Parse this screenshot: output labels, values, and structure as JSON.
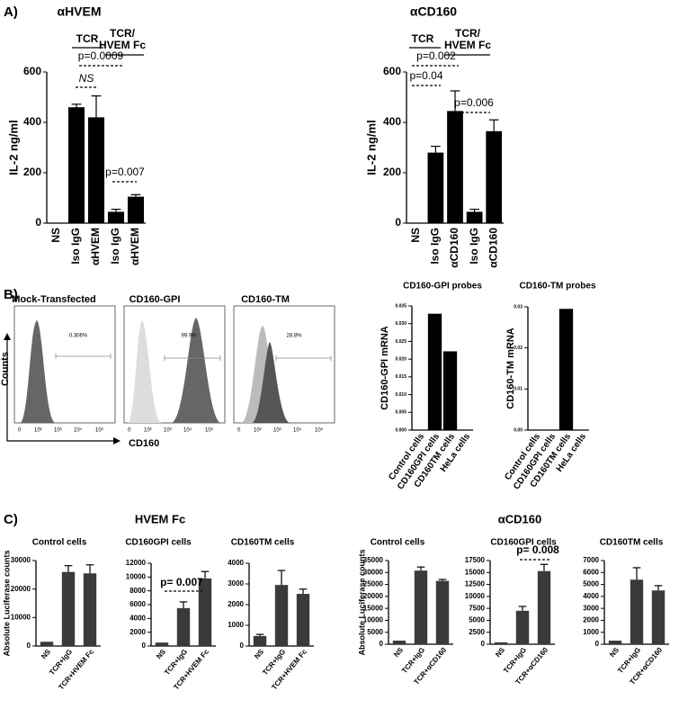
{
  "panel_labels": [
    "A)",
    "B)",
    "C)"
  ],
  "group_titles": [
    "HVEM Fc",
    "αCD160"
  ],
  "flow": {
    "ylabel": "Counts",
    "xlabel": "CD160",
    "xtick_labels": [
      "0",
      "10²",
      "10³",
      "10⁴",
      "10⁵"
    ],
    "panels": [
      {
        "title": "Mock-Transfected",
        "gate": "0.306%"
      },
      {
        "title": "CD160-GPI",
        "gate": "99.9%"
      },
      {
        "title": "CD160-TM",
        "gate": "28.8%"
      }
    ]
  },
  "chart_data": [
    {
      "type": "bar",
      "title": "αHVEM",
      "ylabel": "IL-2 ng/ml",
      "categories": [
        "NS",
        "Iso IgG",
        "αHVEM",
        "Iso IgG",
        "αHVEM"
      ],
      "values": [
        0,
        460,
        420,
        45,
        105
      ],
      "errors": [
        0,
        12,
        85,
        10,
        8
      ],
      "ylim": [
        0,
        600
      ],
      "yticks": [
        0,
        200,
        400,
        600
      ],
      "color": "#000000",
      "annotations": [
        "TCR",
        "TCR/",
        "HVEM Fc",
        "p=0.0009",
        "NS",
        "p=0.007"
      ]
    },
    {
      "type": "bar",
      "title": "αCD160",
      "ylabel": "IL-2 ng/ml",
      "categories": [
        "NS",
        "Iso IgG",
        "αCD160",
        "Iso IgG",
        "αCD160"
      ],
      "values": [
        0,
        280,
        445,
        45,
        365
      ],
      "errors": [
        0,
        25,
        80,
        10,
        45
      ],
      "ylim": [
        0,
        600
      ],
      "yticks": [
        0,
        200,
        400,
        600
      ],
      "color": "#000000",
      "annotations": [
        "TCR",
        "TCR/",
        "HVEM Fc",
        "p=0.002",
        "p=0.04",
        "p=0.006"
      ]
    },
    {
      "type": "bar",
      "title": "CD160-GPI probes",
      "ylabel": "CD160-GPI mRNA",
      "categories": [
        "Control cells",
        "CD160GPI cells",
        "CD160TM cells",
        "HeLa cells"
      ],
      "values": [
        0,
        0.0328,
        0.0222,
        0
      ],
      "errors": [
        0,
        0,
        0,
        0
      ],
      "ylim": [
        0,
        0.035
      ],
      "yticks": [
        {
          "value": 0,
          "label": "0.000"
        },
        {
          "value": 0.005,
          "label": "0.005"
        },
        {
          "value": 0.01,
          "label": "0.010"
        },
        {
          "value": 0.015,
          "label": "0.015"
        },
        {
          "value": 0.02,
          "label": "0.020"
        },
        {
          "value": 0.025,
          "label": "0.025"
        },
        {
          "value": 0.03,
          "label": "0.030"
        },
        {
          "value": 0.035,
          "label": "0.035"
        }
      ],
      "color": "#000000",
      "annotations": []
    },
    {
      "type": "bar",
      "title": "CD160-TM probes",
      "ylabel": "CD160-TM mRNA",
      "categories": [
        "Control cells",
        "CD160GPI cells",
        "CD160TM cells",
        "HeLa cells"
      ],
      "values": [
        0,
        0,
        0.0295,
        0
      ],
      "errors": [
        0,
        0,
        0,
        0
      ],
      "ylim": [
        0,
        0.03
      ],
      "yticks": [
        {
          "value": 0,
          "label": "0.00"
        },
        {
          "value": 0.01,
          "label": "0.01"
        },
        {
          "value": 0.02,
          "label": "0.02"
        },
        {
          "value": 0.03,
          "label": "0.03"
        }
      ],
      "color": "#000000",
      "annotations": []
    },
    {
      "type": "bar",
      "title": "Control cells",
      "ylabel": "Absolute Luciferase counts",
      "categories": [
        "NS",
        "TCR+IgG",
        "TCR+HVEM Fc"
      ],
      "values": [
        1500,
        26000,
        25500
      ],
      "errors": [
        0,
        2200,
        3000
      ],
      "ylim": [
        0,
        30000
      ],
      "yticks": [
        0,
        10000,
        20000,
        30000
      ],
      "color": "#3a3a3a",
      "annotations": []
    },
    {
      "type": "bar",
      "title": "CD160GPI cells",
      "categories": [
        "NS",
        "TCR+IgG",
        "TCR+HVEM Fc"
      ],
      "values": [
        500,
        5500,
        9800
      ],
      "errors": [
        0,
        900,
        1000
      ],
      "ylim": [
        0,
        12000
      ],
      "yticks": [
        0,
        2000,
        4000,
        6000,
        8000,
        10000,
        12000
      ],
      "color": "#3a3a3a",
      "annotations": [
        "p= 0.007"
      ]
    },
    {
      "type": "bar",
      "title": "CD160TM cells",
      "categories": [
        "NS",
        "TCR+IgG",
        "TCR+HVEM Fc"
      ],
      "values": [
        480,
        2950,
        2520
      ],
      "errors": [
        80,
        700,
        230
      ],
      "ylim": [
        0,
        4000
      ],
      "yticks": [
        0,
        1000,
        2000,
        3000,
        4000
      ],
      "color": "#3a3a3a",
      "annotations": []
    },
    {
      "type": "bar",
      "title": "Control cells",
      "ylabel": "Absolute Luciferase counts",
      "categories": [
        "NS",
        "TCR+IgG",
        "TCR+αCD160"
      ],
      "values": [
        1500,
        30800,
        26500
      ],
      "errors": [
        0,
        1500,
        600
      ],
      "ylim": [
        0,
        35000
      ],
      "yticks": [
        0,
        5000,
        10000,
        15000,
        20000,
        25000,
        30000,
        35000
      ],
      "color": "#3a3a3a",
      "annotations": []
    },
    {
      "type": "bar",
      "title": "CD160GPI cells",
      "categories": [
        "NS",
        "TCR+IgG",
        "TCR+αCD160"
      ],
      "values": [
        400,
        7000,
        15300
      ],
      "errors": [
        0,
        900,
        1400
      ],
      "ylim": [
        0,
        17500
      ],
      "yticks": [
        0,
        2500,
        5000,
        7500,
        10000,
        12500,
        15000,
        17500
      ],
      "color": "#3a3a3a",
      "annotations": [
        "p= 0.008"
      ]
    },
    {
      "type": "bar",
      "title": "CD160TM cells",
      "categories": [
        "NS",
        "TCR+IgG",
        "TCR+αCD160"
      ],
      "values": [
        300,
        5400,
        4500
      ],
      "errors": [
        0,
        1000,
        400
      ],
      "ylim": [
        0,
        7000
      ],
      "yticks": [
        0,
        1000,
        2000,
        3000,
        4000,
        5000,
        6000,
        7000
      ],
      "color": "#3a3a3a",
      "annotations": []
    }
  ]
}
